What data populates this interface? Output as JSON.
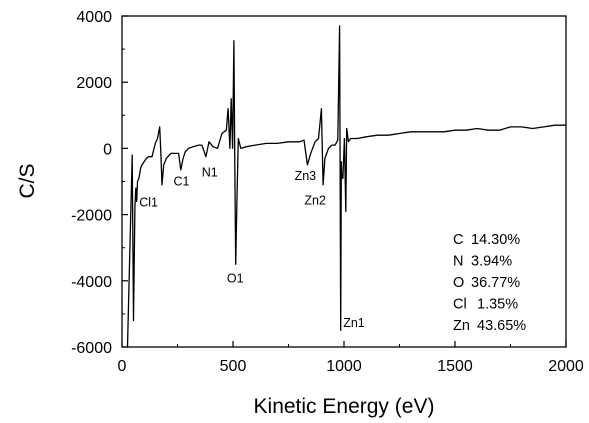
{
  "chart_data": {
    "type": "line",
    "title": "",
    "xlabel": "Kinetic Energy (eV)",
    "ylabel": "C/S",
    "xlim": [
      0,
      2000
    ],
    "ylim": [
      -6000,
      4000
    ],
    "x_ticks": [
      0,
      500,
      1000,
      1500,
      2000
    ],
    "x_tick_labels": [
      "0",
      "500",
      "1000",
      "1500",
      "2000"
    ],
    "y_ticks": [
      -6000,
      -4000,
      -2000,
      0,
      2000,
      4000
    ],
    "y_tick_labels": [
      "-6000",
      "-4000",
      "-2000",
      "0",
      "2000",
      "4000"
    ],
    "grid": false,
    "series": [
      {
        "color": "#000000",
        "x": [
          25,
          32,
          40,
          46,
          52,
          58,
          62,
          66,
          70,
          76,
          84,
          90,
          100,
          110,
          120,
          135,
          150,
          160,
          170,
          175,
          180,
          188,
          200,
          220,
          240,
          255,
          265,
          275,
          285,
          300,
          320,
          345,
          360,
          378,
          392,
          410,
          430,
          450,
          470,
          478,
          486,
          492,
          498,
          504,
          508,
          512,
          518,
          524,
          535,
          560,
          600,
          650,
          700,
          750,
          800,
          820,
          835,
          850,
          870,
          885,
          898,
          906,
          914,
          922,
          930,
          945,
          960,
          972,
          980,
          985,
          988,
          990,
          995,
          1002,
          1008,
          1012,
          1020,
          1030,
          1060,
          1100,
          1150,
          1200,
          1250,
          1300,
          1350,
          1400,
          1450,
          1500,
          1550,
          1600,
          1650,
          1700,
          1750,
          1800,
          1850,
          1900,
          1950,
          2000
        ],
        "y": [
          -6000,
          -4000,
          -1800,
          -200,
          -5200,
          -1800,
          -1200,
          -1600,
          -1000,
          -900,
          -600,
          -500,
          -400,
          -300,
          -250,
          -250,
          150,
          300,
          650,
          -100,
          -1100,
          -500,
          -300,
          -150,
          -150,
          -150,
          -650,
          -300,
          -100,
          0,
          50,
          100,
          100,
          -250,
          200,
          50,
          0,
          450,
          550,
          1200,
          0,
          1500,
          0,
          3250,
          -500,
          -3500,
          -1500,
          300,
          0,
          50,
          100,
          150,
          150,
          200,
          200,
          250,
          -500,
          -150,
          200,
          300,
          1200,
          -1100,
          -300,
          -150,
          0,
          100,
          100,
          250,
          3700,
          -5500,
          -400,
          -900,
          -900,
          300,
          -1900,
          600,
          200,
          300,
          300,
          350,
          400,
          400,
          450,
          500,
          500,
          500,
          500,
          550,
          550,
          600,
          550,
          550,
          650,
          650,
          600,
          650,
          700,
          700
        ]
      }
    ],
    "peak_labels": [
      {
        "text": "Cl1",
        "x": 120,
        "y": -1750
      },
      {
        "text": "C1",
        "x": 268,
        "y": -1120
      },
      {
        "text": "N1",
        "x": 395,
        "y": -850
      },
      {
        "text": "O1",
        "x": 510,
        "y": -4050
      },
      {
        "text": "Zn3",
        "x": 826,
        "y": -960
      },
      {
        "text": "Zn2",
        "x": 870,
        "y": -1700
      },
      {
        "text": "Zn1",
        "x": 1045,
        "y": -5400
      }
    ],
    "composition": [
      {
        "element": "C",
        "value": "14.30%"
      },
      {
        "element": "N",
        "value": "3.94%"
      },
      {
        "element": "O",
        "value": "36.77%"
      },
      {
        "element": "Cl",
        "value": "1.35%"
      },
      {
        "element": "Zn",
        "value": "43.65%"
      }
    ]
  }
}
